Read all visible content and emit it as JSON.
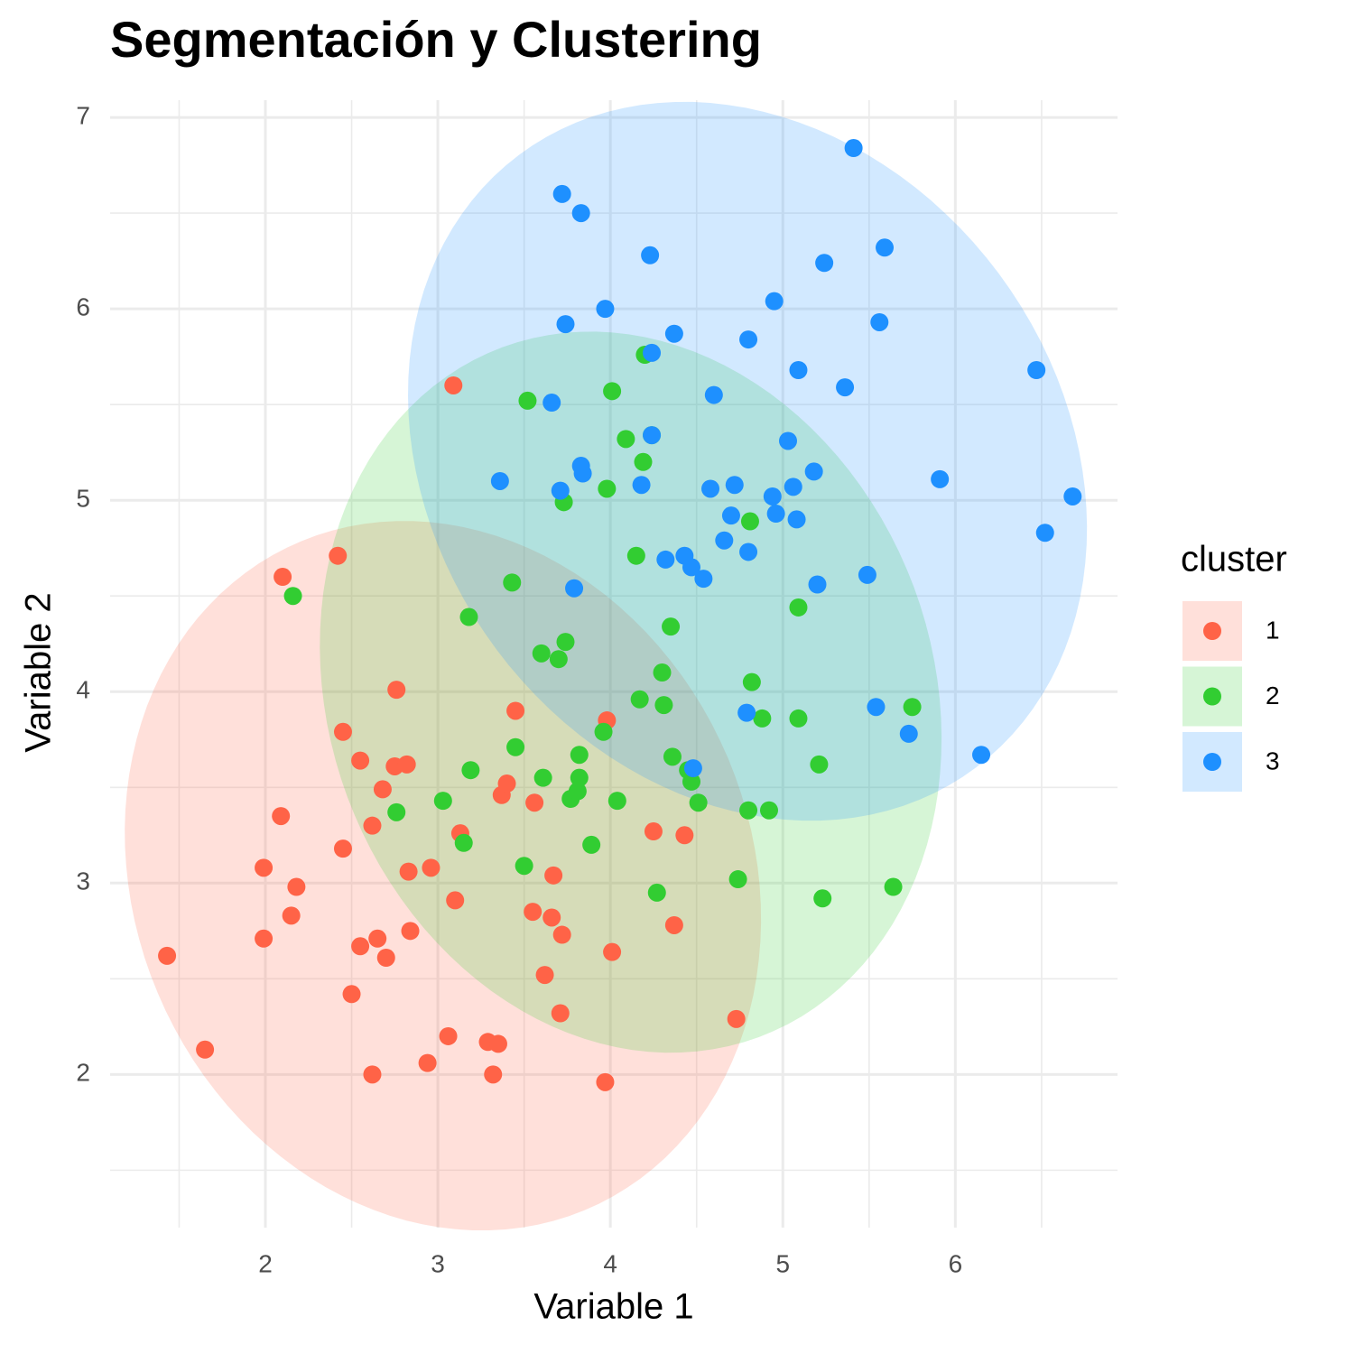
{
  "chart_data": {
    "type": "scatter",
    "title": "Segmentación y Clustering",
    "x_label": "Variable 1",
    "y_label": "Variable 2",
    "legend_title": "cluster",
    "legend_position": "right",
    "grid": true,
    "xlim": [
      1.1,
      6.94
    ],
    "ylim": [
      1.2,
      7.09
    ],
    "xticks": [
      2,
      3,
      4,
      5,
      6
    ],
    "yticks": [
      2,
      3,
      4,
      5,
      6,
      7
    ],
    "ellipses": true,
    "series": [
      {
        "name": "1",
        "color": "#FF6347",
        "x": [
          1.43,
          1.65,
          1.99,
          1.99,
          2.09,
          2.15,
          2.18,
          2.1,
          2.42,
          2.45,
          2.45,
          2.5,
          2.55,
          2.55,
          2.62,
          2.62,
          2.65,
          2.68,
          2.7,
          2.76,
          2.75,
          2.82,
          2.83,
          2.84,
          2.94,
          2.96,
          3.06,
          3.09,
          3.1,
          3.13,
          3.29,
          3.32,
          3.35,
          3.37,
          3.4,
          3.45,
          3.55,
          3.56,
          3.62,
          3.66,
          3.67,
          3.71,
          3.72,
          3.97,
          3.98,
          4.01,
          4.25,
          4.37,
          4.43,
          4.73
        ],
        "values": [
          2.62,
          2.13,
          3.08,
          2.71,
          3.35,
          2.83,
          2.98,
          4.6,
          4.71,
          3.79,
          3.18,
          2.42,
          3.64,
          2.67,
          3.3,
          2.0,
          2.71,
          3.49,
          2.61,
          4.01,
          3.61,
          3.62,
          3.06,
          2.75,
          2.06,
          3.08,
          2.2,
          5.6,
          2.91,
          3.26,
          2.17,
          2.0,
          2.16,
          3.46,
          3.52,
          3.9,
          2.85,
          3.42,
          2.52,
          2.82,
          3.04,
          2.32,
          2.73,
          1.96,
          3.85,
          2.64,
          3.27,
          2.78,
          3.25,
          2.29
        ]
      },
      {
        "name": "2",
        "color": "#32CD32",
        "x": [
          2.16,
          2.76,
          3.03,
          3.15,
          3.18,
          3.19,
          3.43,
          3.45,
          3.5,
          3.52,
          3.6,
          3.61,
          3.7,
          3.74,
          3.73,
          3.77,
          3.81,
          3.82,
          3.82,
          3.89,
          3.96,
          3.98,
          4.01,
          4.04,
          4.09,
          4.15,
          4.17,
          4.19,
          4.2,
          4.24,
          4.27,
          4.3,
          4.31,
          4.35,
          4.36,
          4.47,
          4.51,
          4.74,
          4.8,
          4.81,
          4.82,
          4.88,
          4.92,
          5.09,
          5.09,
          5.21,
          5.23,
          5.64,
          5.75,
          4.45
        ],
        "values": [
          4.5,
          3.37,
          3.43,
          3.21,
          4.39,
          3.59,
          4.57,
          3.71,
          3.09,
          5.52,
          4.2,
          3.55,
          4.17,
          4.26,
          4.99,
          3.44,
          3.48,
          3.67,
          3.55,
          3.2,
          3.79,
          5.06,
          5.57,
          3.43,
          5.32,
          4.71,
          3.96,
          5.2,
          5.76,
          5.34,
          2.95,
          4.1,
          3.93,
          4.34,
          3.66,
          3.53,
          3.42,
          3.02,
          3.38,
          4.89,
          4.05,
          3.86,
          3.38,
          3.86,
          4.44,
          3.62,
          2.92,
          2.98,
          3.92,
          3.59
        ]
      },
      {
        "name": "3",
        "color": "#1E90FF",
        "x": [
          3.36,
          3.66,
          3.71,
          3.72,
          3.74,
          3.79,
          3.83,
          3.83,
          3.84,
          3.97,
          4.18,
          4.23,
          4.24,
          4.24,
          4.32,
          4.37,
          4.43,
          4.47,
          4.48,
          4.54,
          4.58,
          4.6,
          4.66,
          4.7,
          4.72,
          4.79,
          4.8,
          4.8,
          4.94,
          4.95,
          4.96,
          5.03,
          5.06,
          5.08,
          5.09,
          5.18,
          5.2,
          5.24,
          5.36,
          5.41,
          5.49,
          5.54,
          5.56,
          5.59,
          5.73,
          5.91,
          6.15,
          6.47,
          6.52,
          6.68
        ],
        "values": [
          5.1,
          5.51,
          5.05,
          6.6,
          5.92,
          4.54,
          6.5,
          5.18,
          5.14,
          6.0,
          5.08,
          6.28,
          5.34,
          5.77,
          4.69,
          5.87,
          4.71,
          4.65,
          3.6,
          4.59,
          5.06,
          5.55,
          4.79,
          4.92,
          5.08,
          3.89,
          5.84,
          4.73,
          5.02,
          6.04,
          4.93,
          5.31,
          5.07,
          4.9,
          5.68,
          5.15,
          4.56,
          6.24,
          5.59,
          6.84,
          4.61,
          3.92,
          5.93,
          6.32,
          3.78,
          5.11,
          3.67,
          5.68,
          4.83,
          5.02
        ]
      }
    ]
  }
}
